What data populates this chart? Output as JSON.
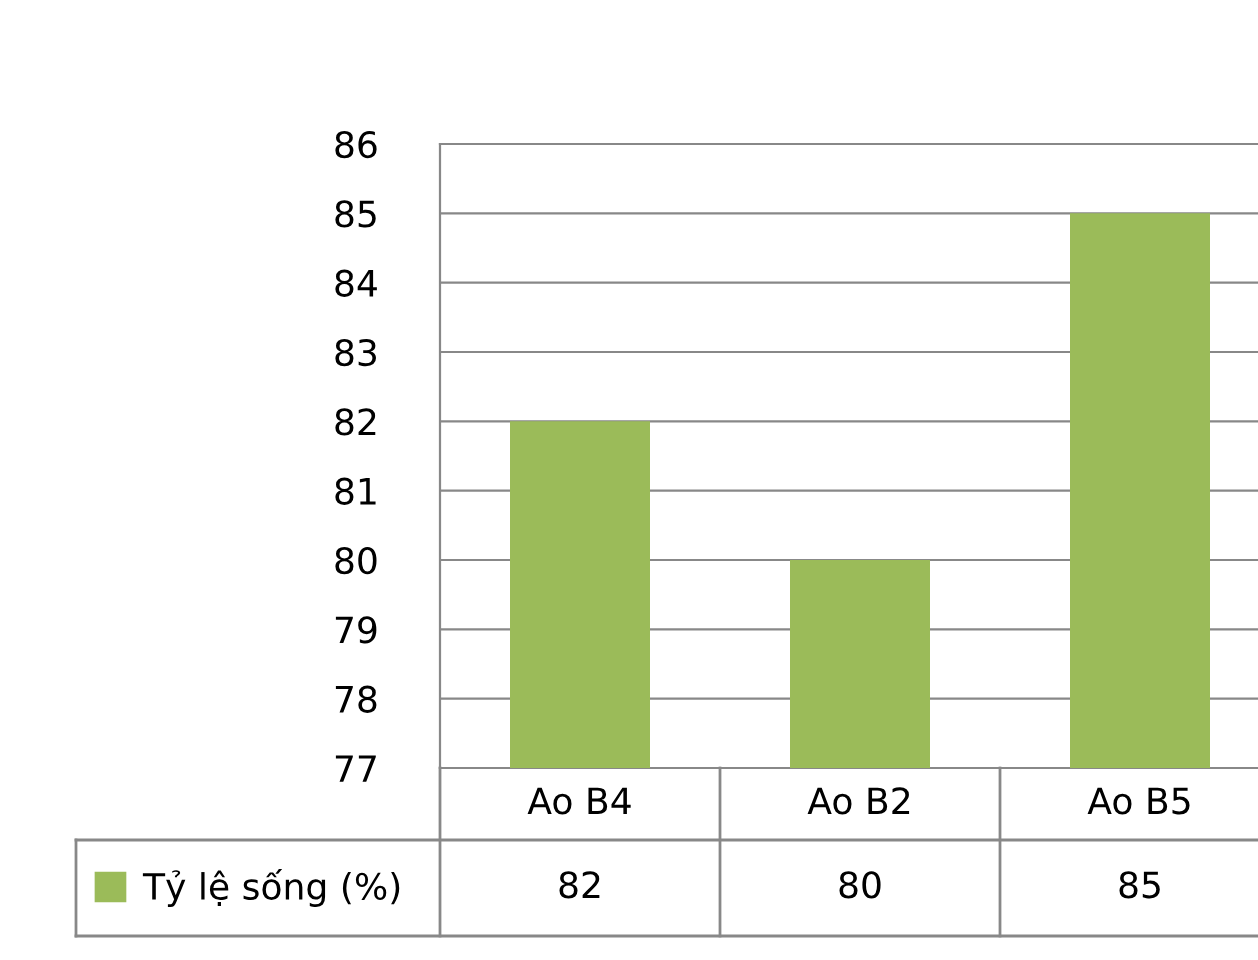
{
  "chart_data": {
    "type": "bar",
    "categories": [
      "Ao B4",
      "Ao B2",
      "Ao B5"
    ],
    "series": [
      {
        "name": "Tỷ lệ sống (%)",
        "color": "#9bbb59",
        "values": [
          82,
          80,
          85
        ]
      }
    ],
    "ylim": [
      77,
      86
    ],
    "yticks": [
      77,
      78,
      79,
      80,
      81,
      82,
      83,
      84,
      85,
      86
    ],
    "grid": "y",
    "legend": "bottom",
    "data_labels": true
  }
}
